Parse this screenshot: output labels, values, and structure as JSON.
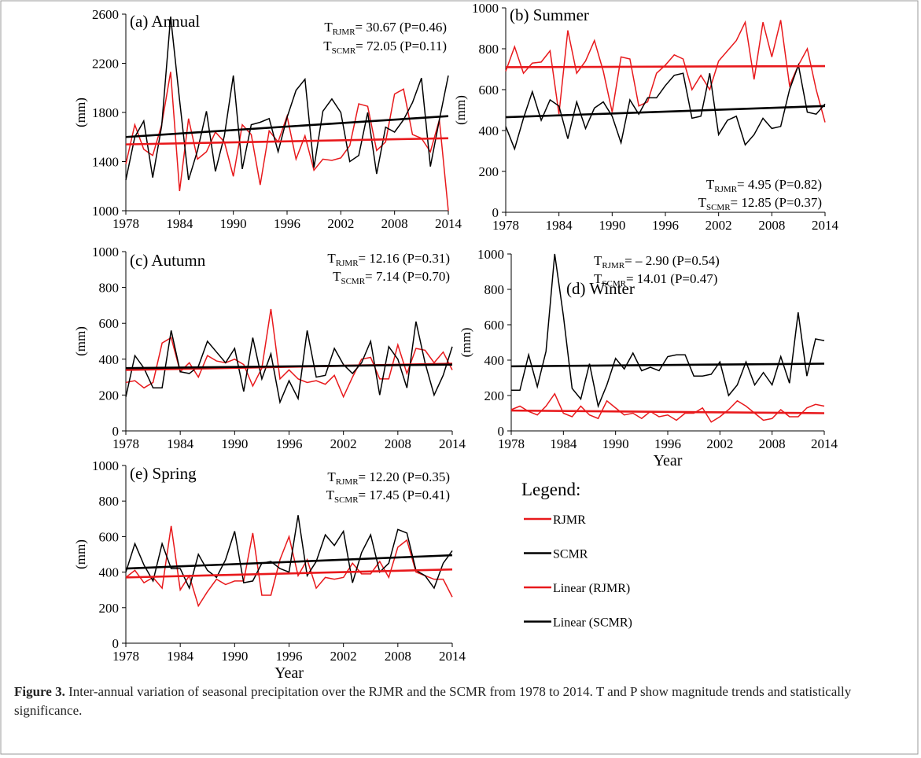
{
  "chart_data": [
    {
      "type": "line",
      "title": "(a) Annual",
      "ylabel": "(mm)",
      "x": [
        1978,
        1979,
        1980,
        1981,
        1982,
        1983,
        1984,
        1985,
        1986,
        1987,
        1988,
        1989,
        1990,
        1991,
        1992,
        1993,
        1994,
        1995,
        1996,
        1997,
        1998,
        1999,
        2000,
        2001,
        2002,
        2003,
        2004,
        2005,
        2006,
        2007,
        2008,
        2009,
        2010,
        2011,
        2012,
        2013,
        2014
      ],
      "xlim": [
        1978,
        2014
      ],
      "xticks": [
        1978,
        1984,
        1990,
        1996,
        2002,
        2008,
        2014
      ],
      "ylim": [
        1000,
        2600
      ],
      "yticks": [
        1000,
        1400,
        1800,
        2200,
        2600
      ],
      "series": [
        {
          "color": "#e8191c",
          "values": [
            1380,
            1700,
            1500,
            1450,
            1700,
            2130,
            1160,
            1750,
            1420,
            1480,
            1640,
            1560,
            1280,
            1700,
            1620,
            1210,
            1650,
            1560,
            1770,
            1420,
            1610,
            1330,
            1420,
            1410,
            1430,
            1530,
            1870,
            1850,
            1490,
            1560,
            1950,
            1990,
            1620,
            1590,
            1480,
            1740,
            1000
          ]
        },
        {
          "color": "#000000",
          "values": [
            1250,
            1600,
            1730,
            1270,
            1690,
            2580,
            1900,
            1250,
            1490,
            1810,
            1320,
            1610,
            2100,
            1340,
            1700,
            1720,
            1750,
            1480,
            1760,
            1980,
            2070,
            1350,
            1810,
            1910,
            1800,
            1400,
            1450,
            1800,
            1300,
            1680,
            1640,
            1740,
            1880,
            2080,
            1360,
            1740,
            2100
          ]
        }
      ],
      "trendlines": [
        {
          "color": "#e8191c",
          "x": [
            1978,
            2014
          ],
          "values": [
            1540,
            1590
          ]
        },
        {
          "color": "#000000",
          "x": [
            1978,
            2014
          ],
          "values": [
            1600,
            1770
          ]
        }
      ],
      "stats": [
        {
          "symbol": "T",
          "subscript": "RJMR",
          "text": "= 30.67 (P=0.46)"
        },
        {
          "symbol": "T",
          "subscript": "SCMR",
          "text": "= 72.05 (P=0.11)"
        }
      ]
    },
    {
      "type": "line",
      "title": "(b) Summer",
      "ylabel": "(mm)",
      "x": [
        1978,
        1979,
        1980,
        1981,
        1982,
        1983,
        1984,
        1985,
        1986,
        1987,
        1988,
        1989,
        1990,
        1991,
        1992,
        1993,
        1994,
        1995,
        1996,
        1997,
        1998,
        1999,
        2000,
        2001,
        2002,
        2003,
        2004,
        2005,
        2006,
        2007,
        2008,
        2009,
        2010,
        2011,
        2012,
        2013,
        2014
      ],
      "xlim": [
        1978,
        2014
      ],
      "xticks": [
        1978,
        1984,
        1990,
        1996,
        2002,
        2008,
        2014
      ],
      "ylim": [
        0,
        1000
      ],
      "yticks": [
        0,
        200,
        400,
        600,
        800,
        1000
      ],
      "series": [
        {
          "color": "#e8191c",
          "values": [
            690,
            810,
            680,
            730,
            735,
            790,
            480,
            890,
            680,
            740,
            840,
            690,
            490,
            760,
            750,
            520,
            540,
            680,
            720,
            770,
            750,
            600,
            670,
            600,
            740,
            790,
            840,
            930,
            650,
            930,
            760,
            940,
            620,
            720,
            800,
            600,
            440
          ]
        },
        {
          "color": "#000000",
          "values": [
            420,
            310,
            460,
            590,
            450,
            550,
            520,
            360,
            540,
            410,
            510,
            540,
            470,
            340,
            550,
            480,
            560,
            560,
            620,
            670,
            680,
            460,
            470,
            680,
            380,
            450,
            470,
            330,
            380,
            460,
            410,
            420,
            600,
            720,
            490,
            480,
            530
          ]
        }
      ],
      "trendlines": [
        {
          "color": "#e8191c",
          "x": [
            1978,
            2014
          ],
          "values": [
            710,
            715
          ]
        },
        {
          "color": "#000000",
          "x": [
            1978,
            2014
          ],
          "values": [
            465,
            520
          ]
        }
      ],
      "stats": [
        {
          "symbol": "T",
          "subscript": "RJMR",
          "text": "= 4.95 (P=0.82)"
        },
        {
          "symbol": "T",
          "subscript": "SCMR",
          "text": "= 12.85 (P=0.37)"
        }
      ]
    },
    {
      "type": "line",
      "title": "(c) Autumn",
      "ylabel": "(mm)",
      "x": [
        1978,
        1979,
        1980,
        1981,
        1982,
        1983,
        1984,
        1985,
        1986,
        1987,
        1988,
        1989,
        1990,
        1991,
        1992,
        1993,
        1994,
        1995,
        1996,
        1997,
        1998,
        1999,
        2000,
        2001,
        2002,
        2003,
        2004,
        2005,
        2006,
        2007,
        2008,
        2009,
        2010,
        2011,
        2012,
        2013,
        2014
      ],
      "xlim": [
        1978,
        2014
      ],
      "xticks": [
        1978,
        1984,
        1990,
        1996,
        2002,
        2008,
        2014
      ],
      "ylim": [
        0,
        1000
      ],
      "yticks": [
        0,
        200,
        400,
        600,
        800,
        1000
      ],
      "series": [
        {
          "color": "#e8191c",
          "values": [
            270,
            280,
            240,
            270,
            490,
            520,
            330,
            380,
            300,
            420,
            390,
            380,
            400,
            370,
            250,
            350,
            680,
            290,
            340,
            290,
            270,
            280,
            260,
            310,
            190,
            300,
            400,
            410,
            290,
            290,
            480,
            320,
            460,
            450,
            380,
            440,
            340
          ]
        },
        {
          "color": "#000000",
          "values": [
            190,
            420,
            350,
            240,
            240,
            560,
            330,
            320,
            360,
            500,
            440,
            380,
            460,
            220,
            520,
            290,
            430,
            160,
            280,
            180,
            560,
            300,
            310,
            460,
            370,
            320,
            380,
            500,
            200,
            470,
            400,
            240,
            610,
            380,
            200,
            310,
            470
          ]
        }
      ],
      "trendlines": [
        {
          "color": "#e8191c",
          "x": [
            1978,
            2014
          ],
          "values": [
            340,
            375
          ]
        },
        {
          "color": "#000000",
          "x": [
            1978,
            2014
          ],
          "values": [
            350,
            370
          ]
        }
      ],
      "stats": [
        {
          "symbol": "T",
          "subscript": "RJMR",
          "text": "= 12.16 (P=0.31)"
        },
        {
          "symbol": "T",
          "subscript": "SCMR",
          "text": "= 7.14  (P=0.70)"
        }
      ]
    },
    {
      "type": "line",
      "title": "(d) Winter",
      "ylabel": "(mm)",
      "xlabel": "Year",
      "x": [
        1978,
        1979,
        1980,
        1981,
        1982,
        1983,
        1984,
        1985,
        1986,
        1987,
        1988,
        1989,
        1990,
        1991,
        1992,
        1993,
        1994,
        1995,
        1996,
        1997,
        1998,
        1999,
        2000,
        2001,
        2002,
        2003,
        2004,
        2005,
        2006,
        2007,
        2008,
        2009,
        2010,
        2011,
        2012,
        2013,
        2014
      ],
      "xlim": [
        1978,
        2014
      ],
      "xticks": [
        1978,
        1984,
        1990,
        1996,
        2002,
        2008,
        2014
      ],
      "ylim": [
        0,
        1000
      ],
      "yticks": [
        0,
        200,
        400,
        600,
        800,
        1000
      ],
      "series": [
        {
          "color": "#e8191c",
          "values": [
            120,
            140,
            110,
            90,
            140,
            210,
            100,
            80,
            140,
            90,
            70,
            170,
            130,
            90,
            100,
            70,
            110,
            80,
            90,
            60,
            100,
            100,
            130,
            50,
            80,
            120,
            170,
            140,
            100,
            60,
            70,
            120,
            80,
            80,
            130,
            150,
            140
          ]
        },
        {
          "color": "#000000",
          "values": [
            230,
            230,
            430,
            250,
            450,
            1000,
            650,
            240,
            180,
            380,
            140,
            260,
            410,
            350,
            440,
            340,
            360,
            340,
            420,
            430,
            430,
            310,
            310,
            320,
            390,
            200,
            260,
            390,
            260,
            330,
            260,
            420,
            270,
            670,
            310,
            520,
            510
          ]
        }
      ],
      "trendlines": [
        {
          "color": "#e8191c",
          "x": [
            1978,
            2014
          ],
          "values": [
            115,
            100
          ]
        },
        {
          "color": "#000000",
          "x": [
            1978,
            2014
          ],
          "values": [
            365,
            380
          ]
        }
      ],
      "stats": [
        {
          "symbol": "T",
          "subscript": "RJMR",
          "text": "= – 2.90  (P=0.54)"
        },
        {
          "symbol": "T",
          "subscript": "SCMR",
          "text": "= 14.01   (P=0.47)"
        }
      ]
    },
    {
      "type": "line",
      "title": "(e) Spring",
      "ylabel": "(mm)",
      "xlabel": "Year",
      "x": [
        1978,
        1979,
        1980,
        1981,
        1982,
        1983,
        1984,
        1985,
        1986,
        1987,
        1988,
        1989,
        1990,
        1991,
        1992,
        1993,
        1994,
        1995,
        1996,
        1997,
        1998,
        1999,
        2000,
        2001,
        2002,
        2003,
        2004,
        2005,
        2006,
        2007,
        2008,
        2009,
        2010,
        2011,
        2012,
        2013,
        2014
      ],
      "xlim": [
        1978,
        2014
      ],
      "xticks": [
        1978,
        1984,
        1990,
        1996,
        2002,
        2008,
        2014
      ],
      "ylim": [
        0,
        1000
      ],
      "yticks": [
        0,
        200,
        400,
        600,
        800,
        1000
      ],
      "series": [
        {
          "color": "#e8191c",
          "values": [
            370,
            410,
            340,
            370,
            310,
            660,
            300,
            380,
            210,
            290,
            360,
            330,
            350,
            350,
            620,
            270,
            270,
            470,
            600,
            380,
            470,
            310,
            370,
            360,
            370,
            450,
            390,
            390,
            460,
            370,
            540,
            580,
            400,
            380,
            360,
            360,
            260
          ]
        },
        {
          "color": "#000000",
          "values": [
            400,
            560,
            440,
            350,
            560,
            420,
            420,
            310,
            500,
            410,
            370,
            470,
            630,
            340,
            350,
            450,
            460,
            420,
            400,
            720,
            380,
            460,
            610,
            550,
            630,
            340,
            510,
            610,
            400,
            450,
            640,
            620,
            410,
            380,
            310,
            450,
            520
          ]
        }
      ],
      "trendlines": [
        {
          "color": "#e8191c",
          "x": [
            1978,
            2014
          ],
          "values": [
            370,
            415
          ]
        },
        {
          "color": "#000000",
          "x": [
            1978,
            2014
          ],
          "values": [
            420,
            495
          ]
        }
      ],
      "stats": [
        {
          "symbol": "T",
          "subscript": "RJMR",
          "text": "= 12.20 (P=0.35)"
        },
        {
          "symbol": "T",
          "subscript": "SCMR",
          "text": "= 17.45 (P=0.41)"
        }
      ]
    }
  ],
  "legend": {
    "title": "Legend:",
    "entries": [
      {
        "name": "RJMR",
        "color": "#e8191c"
      },
      {
        "name": "SCMR",
        "color": "#000000"
      },
      {
        "name": "Linear (RJMR)",
        "color": "#e8191c"
      },
      {
        "name": "Linear (SCMR)",
        "color": "#000000"
      }
    ]
  },
  "caption": {
    "label": "Figure 3.",
    "text": " Inter-annual variation of seasonal precipitation over the RJMR and the SCMR from 1978 to 2014. T and P show magnitude trends and statistically significance."
  }
}
